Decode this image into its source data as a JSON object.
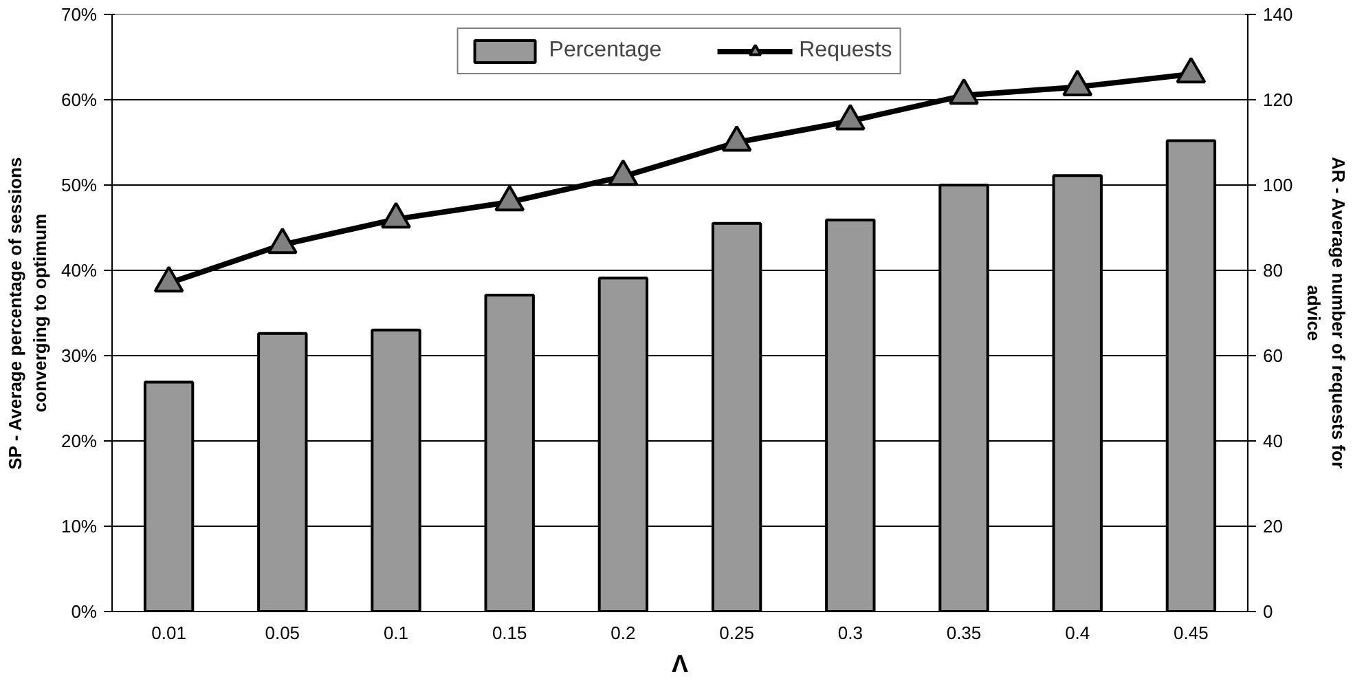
{
  "chart_data": {
    "type": "bar",
    "categories": [
      "0.01",
      "0.05",
      "0.1",
      "0.15",
      "0.2",
      "0.25",
      "0.3",
      "0.35",
      "0.4",
      "0.45"
    ],
    "xlabel": "Λ",
    "ylabel": "SP - Average percentage of sessions converging to optimum",
    "y2label": "AR - Average number of requests for advice",
    "series": [
      {
        "name": "Percentage",
        "color": "#999999",
        "values": [
          26.9,
          32.6,
          33.0,
          37.1,
          39.1,
          45.5,
          45.9,
          50.0,
          51.1,
          55.2
        ]
      },
      {
        "name": "Requests",
        "type": "line",
        "axis": "y2",
        "color": "#000000",
        "marker": "triangle",
        "values": [
          77,
          86,
          92,
          96,
          102,
          110,
          115,
          121,
          123,
          126
        ]
      }
    ],
    "ylim": [
      0,
      70
    ],
    "yticks": [
      {
        "value": 0,
        "label": "0%"
      },
      {
        "value": 10,
        "label": "10%"
      },
      {
        "value": 20,
        "label": "20%"
      },
      {
        "value": 30,
        "label": "30%"
      },
      {
        "value": 40,
        "label": "40%"
      },
      {
        "value": 50,
        "label": "50%"
      },
      {
        "value": 60,
        "label": "60%"
      },
      {
        "value": 70,
        "label": "70%"
      }
    ],
    "y2lim": [
      0,
      140
    ],
    "y2ticks": [
      0,
      20,
      40,
      60,
      80,
      100,
      120,
      140
    ],
    "grid": "y",
    "legend": "top"
  }
}
